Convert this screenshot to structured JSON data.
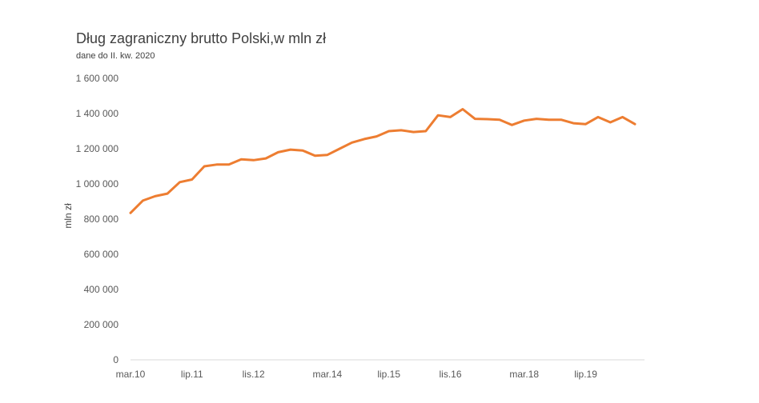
{
  "chart_data": {
    "type": "line",
    "title": "Dług zagraniczny brutto Polski,w mln zł",
    "subtitle": "dane do II. kw. 2020",
    "ylabel": "mln zł",
    "xlabel": "",
    "ylim": [
      0,
      1600000
    ],
    "y_ticks": [
      0,
      200000,
      400000,
      600000,
      800000,
      1000000,
      1200000,
      1400000,
      1600000
    ],
    "y_tick_labels": [
      "0",
      "200 000",
      "400 000",
      "600 000",
      "800 000",
      "1 000 000",
      "1 200 000",
      "1 400 000",
      "1 600 000"
    ],
    "x_tick_labels": [
      {
        "label": "mar.10",
        "index": 0
      },
      {
        "label": "lip.11",
        "index": 5
      },
      {
        "label": "lis.12",
        "index": 10
      },
      {
        "label": "mar.14",
        "index": 16
      },
      {
        "label": "lip.15",
        "index": 21
      },
      {
        "label": "lis.16",
        "index": 26
      },
      {
        "label": "mar.18",
        "index": 32
      },
      {
        "label": "lip.19",
        "index": 37
      }
    ],
    "grid": false,
    "legend": "none",
    "line_color": "#ED7D31",
    "series": [
      {
        "values": [
          835000,
          905000,
          930000,
          945000,
          1010000,
          1025000,
          1100000,
          1110000,
          1110000,
          1140000,
          1135000,
          1145000,
          1180000,
          1195000,
          1190000,
          1160000,
          1165000,
          1200000,
          1235000,
          1255000,
          1270000,
          1300000,
          1305000,
          1295000,
          1300000,
          1390000,
          1380000,
          1425000,
          1370000,
          1368000,
          1365000,
          1335000,
          1360000,
          1370000,
          1365000,
          1365000,
          1345000,
          1340000,
          1380000,
          1350000,
          1380000,
          1340000
        ]
      }
    ]
  }
}
